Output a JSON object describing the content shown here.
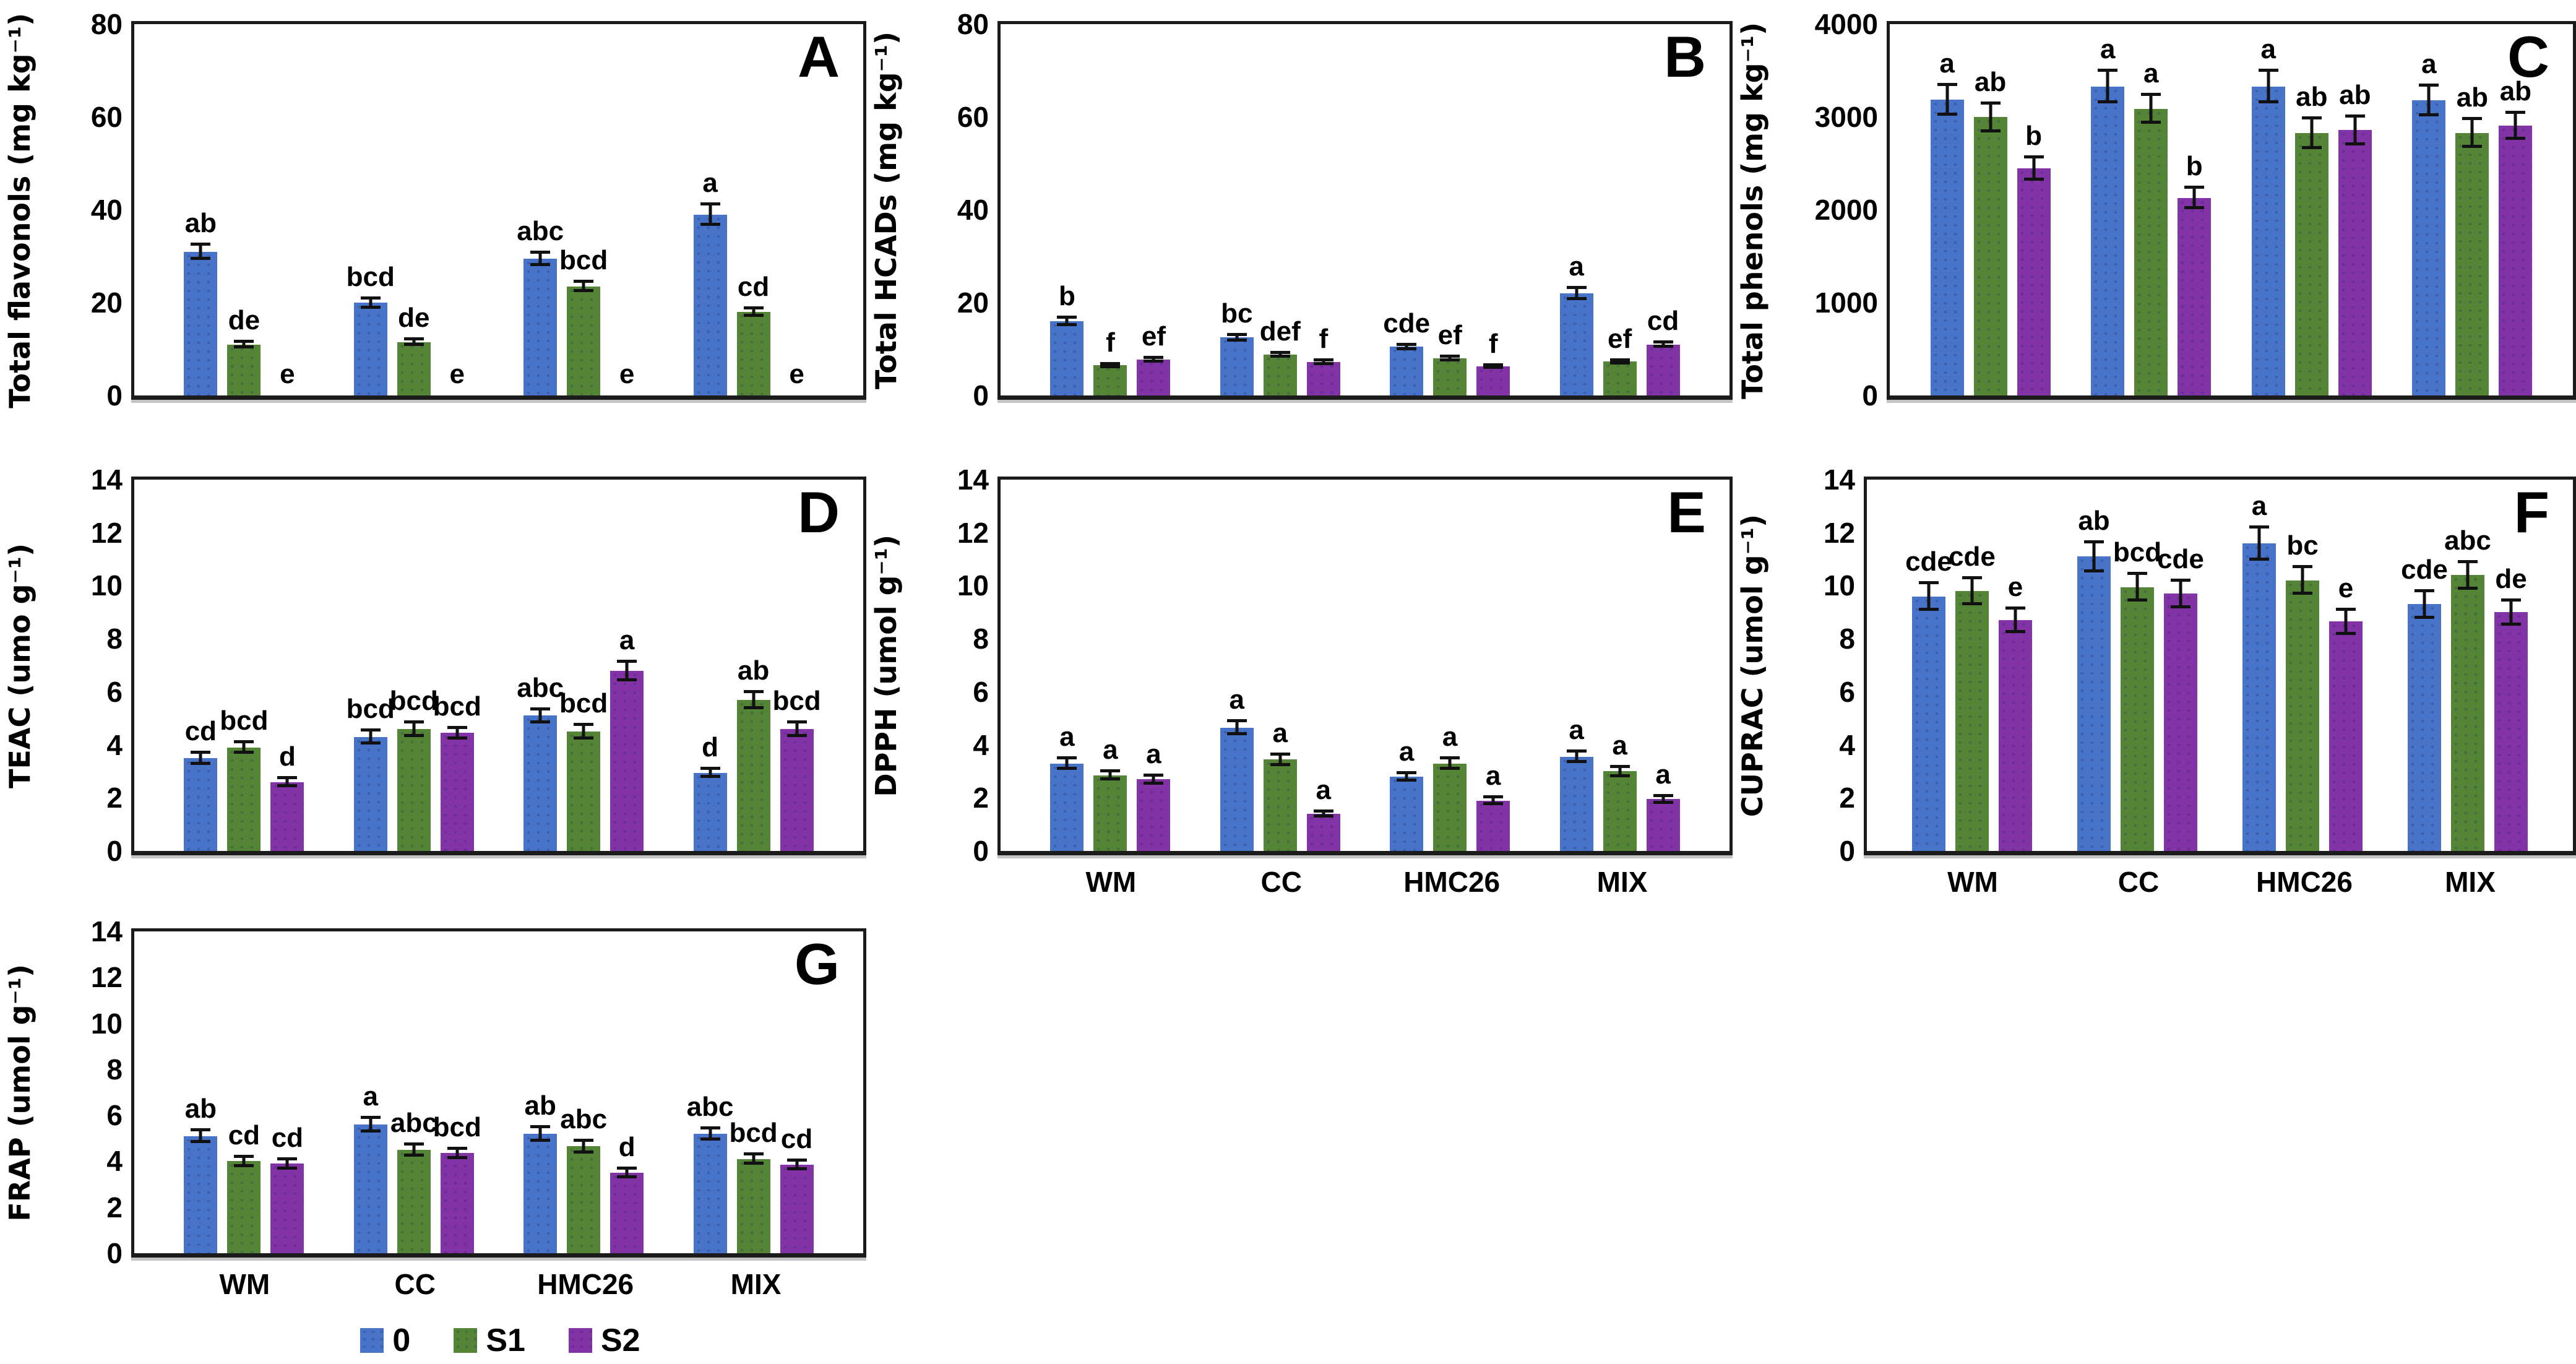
{
  "figure": {
    "colors": {
      "bar_blue": "#4774C9",
      "bar_green": "#548537",
      "bar_purple": "#8233A6",
      "axis": "#1b1b1b",
      "text": "#000000"
    },
    "legend": {
      "position": "bottom-under-panel-G",
      "items": [
        {
          "label": "0",
          "color": "#4774C9"
        },
        {
          "label": "S1",
          "color": "#548537"
        },
        {
          "label": "S2",
          "color": "#8233A6"
        }
      ]
    }
  },
  "chart_data": [
    {
      "type": "bar",
      "panel": "A",
      "ylabel": "Total flavonols (mg kg⁻¹)",
      "ylim": [
        0,
        80
      ],
      "yticks": [
        0,
        20,
        40,
        60,
        80
      ],
      "categories": [
        "WM",
        "CC",
        "HMC26",
        "MIX"
      ],
      "show_x_labels": false,
      "grid": false,
      "series": [
        {
          "name": "0",
          "color": "#4774C9",
          "values": [
            31,
            20,
            29.5,
            39
          ],
          "errors": [
            1.5,
            1,
            1.3,
            2.2
          ],
          "letters": [
            "ab",
            "bcd",
            "abc",
            "a"
          ]
        },
        {
          "name": "S1",
          "color": "#548537",
          "values": [
            11,
            11.5,
            23.5,
            18
          ],
          "errors": [
            0.6,
            0.6,
            1,
            0.8
          ],
          "letters": [
            "de",
            "de",
            "bcd",
            "cd"
          ]
        },
        {
          "name": "S2",
          "color": "#8233A6",
          "values": [
            0,
            0,
            0,
            0
          ],
          "errors": [
            0,
            0,
            0,
            0
          ],
          "letters": [
            "e",
            "e",
            "e",
            "e"
          ]
        }
      ]
    },
    {
      "type": "bar",
      "panel": "B",
      "ylabel": "Total HCADs (mg kg⁻¹)",
      "ylim": [
        0,
        80
      ],
      "yticks": [
        0,
        20,
        40,
        60,
        80
      ],
      "categories": [
        "WM",
        "CC",
        "HMC26",
        "MIX"
      ],
      "show_x_labels": false,
      "grid": false,
      "series": [
        {
          "name": "0",
          "color": "#4774C9",
          "values": [
            16,
            12.5,
            10.5,
            22
          ],
          "errors": [
            0.8,
            0.6,
            0.5,
            1.2
          ],
          "letters": [
            "b",
            "bc",
            "cde",
            "a"
          ]
        },
        {
          "name": "S1",
          "color": "#548537",
          "values": [
            6.5,
            8.8,
            8,
            7.3
          ],
          "errors": [
            0.3,
            0.4,
            0.4,
            0.35
          ],
          "letters": [
            "f",
            "def",
            "ef",
            "ef"
          ]
        },
        {
          "name": "S2",
          "color": "#8233A6",
          "values": [
            7.8,
            7.2,
            6.3,
            11
          ],
          "errors": [
            0.4,
            0.4,
            0.3,
            0.5
          ],
          "letters": [
            "ef",
            "f",
            "f",
            "cd"
          ]
        }
      ]
    },
    {
      "type": "bar",
      "panel": "C",
      "ylabel": "Total phenols (mg kg⁻¹)",
      "ylim": [
        0,
        4000
      ],
      "yticks": [
        0,
        1000,
        2000,
        3000,
        4000
      ],
      "categories": [
        "WM",
        "CC",
        "HMC26",
        "MIX"
      ],
      "show_x_labels": false,
      "grid": false,
      "series": [
        {
          "name": "0",
          "color": "#4774C9",
          "values": [
            3190,
            3330,
            3330,
            3180
          ],
          "errors": [
            160,
            170,
            170,
            160
          ],
          "letters": [
            "a",
            "a",
            "a",
            "a"
          ]
        },
        {
          "name": "S1",
          "color": "#548537",
          "values": [
            3000,
            3090,
            2830,
            2830
          ],
          "errors": [
            150,
            150,
            160,
            150
          ],
          "letters": [
            "ab",
            "a",
            "ab",
            "ab"
          ]
        },
        {
          "name": "S2",
          "color": "#8233A6",
          "values": [
            2450,
            2130,
            2860,
            2910
          ],
          "errors": [
            120,
            110,
            150,
            140
          ],
          "letters": [
            "b",
            "b",
            "ab",
            "ab"
          ]
        }
      ]
    },
    {
      "type": "bar",
      "panel": "D",
      "ylabel": "TEAC (umo g⁻¹)",
      "ylim": [
        0,
        14
      ],
      "yticks": [
        0,
        2,
        4,
        6,
        8,
        10,
        12,
        14
      ],
      "categories": [
        "WM",
        "CC",
        "HMC26",
        "MIX"
      ],
      "show_x_labels": false,
      "grid": false,
      "series": [
        {
          "name": "0",
          "color": "#4774C9",
          "values": [
            3.5,
            4.3,
            5.1,
            2.95
          ],
          "errors": [
            0.2,
            0.25,
            0.25,
            0.15
          ],
          "letters": [
            "cd",
            "bcd",
            "abc",
            "d"
          ]
        },
        {
          "name": "S1",
          "color": "#548537",
          "values": [
            3.9,
            4.6,
            4.5,
            5.7
          ],
          "errors": [
            0.2,
            0.25,
            0.25,
            0.3
          ],
          "letters": [
            "bcd",
            "bcd",
            "bcd",
            "ab"
          ]
        },
        {
          "name": "S2",
          "color": "#8233A6",
          "values": [
            2.6,
            4.45,
            6.8,
            4.6
          ],
          "errors": [
            0.15,
            0.2,
            0.35,
            0.25
          ],
          "letters": [
            "d",
            "bcd",
            "a",
            "bcd"
          ]
        }
      ]
    },
    {
      "type": "bar",
      "panel": "E",
      "ylabel": "DPPH (umol g⁻¹)",
      "ylim": [
        0,
        14
      ],
      "yticks": [
        0,
        2,
        4,
        6,
        8,
        10,
        12,
        14
      ],
      "categories": [
        "WM",
        "CC",
        "HMC26",
        "MIX"
      ],
      "show_x_labels": true,
      "grid": false,
      "series": [
        {
          "name": "0",
          "color": "#4774C9",
          "values": [
            3.3,
            4.65,
            2.8,
            3.55
          ],
          "errors": [
            0.2,
            0.25,
            0.15,
            0.2
          ],
          "letters": [
            "a",
            "a",
            "a",
            "a"
          ]
        },
        {
          "name": "S1",
          "color": "#548537",
          "values": [
            2.85,
            3.45,
            3.3,
            3.0
          ],
          "errors": [
            0.15,
            0.2,
            0.2,
            0.18
          ],
          "letters": [
            "a",
            "a",
            "a",
            "a"
          ]
        },
        {
          "name": "S2",
          "color": "#8233A6",
          "values": [
            2.7,
            1.4,
            1.9,
            1.95
          ],
          "errors": [
            0.15,
            0.1,
            0.12,
            0.12
          ],
          "letters": [
            "a",
            "a",
            "a",
            "a"
          ]
        }
      ]
    },
    {
      "type": "bar",
      "panel": "F",
      "ylabel": "CUPRAC (umol g⁻¹)",
      "ylim": [
        0,
        14
      ],
      "yticks": [
        0,
        2,
        4,
        6,
        8,
        10,
        12,
        14
      ],
      "categories": [
        "WM",
        "CC",
        "HMC26",
        "MIX"
      ],
      "show_x_labels": true,
      "grid": false,
      "series": [
        {
          "name": "0",
          "color": "#4774C9",
          "values": [
            9.6,
            11.1,
            11.6,
            9.3
          ],
          "errors": [
            0.5,
            0.55,
            0.6,
            0.5
          ],
          "letters": [
            "cde",
            "ab",
            "a",
            "cde"
          ]
        },
        {
          "name": "S1",
          "color": "#548537",
          "values": [
            9.8,
            9.95,
            10.2,
            10.4
          ],
          "errors": [
            0.5,
            0.5,
            0.5,
            0.5
          ],
          "letters": [
            "cde",
            "bcd",
            "bc",
            "abc"
          ]
        },
        {
          "name": "S2",
          "color": "#8233A6",
          "values": [
            8.7,
            9.7,
            8.65,
            9.0
          ],
          "errors": [
            0.45,
            0.5,
            0.45,
            0.45
          ],
          "letters": [
            "e",
            "cde",
            "e",
            "de"
          ]
        }
      ]
    },
    {
      "type": "bar",
      "panel": "G",
      "ylabel": "FRAP (umol g⁻¹)",
      "ylim": [
        0,
        14
      ],
      "yticks": [
        0,
        2,
        4,
        6,
        8,
        10,
        12,
        14
      ],
      "categories": [
        "WM",
        "CC",
        "HMC26",
        "MIX"
      ],
      "show_x_labels": true,
      "grid": false,
      "series": [
        {
          "name": "0",
          "color": "#4774C9",
          "values": [
            5.1,
            5.6,
            5.2,
            5.2
          ],
          "errors": [
            0.25,
            0.3,
            0.3,
            0.25
          ],
          "letters": [
            "ab",
            "a",
            "ab",
            "abc"
          ]
        },
        {
          "name": "S1",
          "color": "#548537",
          "values": [
            4.0,
            4.5,
            4.65,
            4.1
          ],
          "errors": [
            0.2,
            0.25,
            0.25,
            0.2
          ],
          "letters": [
            "cd",
            "abc",
            "abc",
            "bcd"
          ]
        },
        {
          "name": "S2",
          "color": "#8233A6",
          "values": [
            3.9,
            4.35,
            3.5,
            3.85
          ],
          "errors": [
            0.2,
            0.2,
            0.2,
            0.2
          ],
          "letters": [
            "cd",
            "bcd",
            "d",
            "cd"
          ]
        }
      ]
    }
  ]
}
